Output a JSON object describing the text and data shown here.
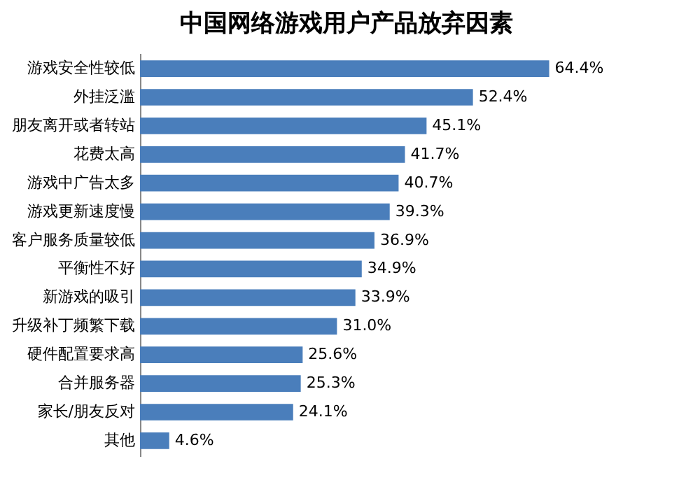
{
  "chart_data": {
    "type": "bar",
    "orientation": "horizontal",
    "title": "中国网络游戏用户产品放弃因素",
    "categories": [
      "游戏安全性较低",
      "外挂泛滥",
      "朋友离开或者转站",
      "花费太高",
      "游戏中广告太多",
      "游戏更新速度慢",
      "客户服务质量较低",
      "平衡性不好",
      "新游戏的吸引",
      "升级补丁频繁下载",
      "硬件配置要求高",
      "合并服务器",
      "家长/朋友反对",
      "其他"
    ],
    "values": [
      64.4,
      52.4,
      45.1,
      41.7,
      40.7,
      39.3,
      36.9,
      34.9,
      33.9,
      31.0,
      25.6,
      25.3,
      24.1,
      4.6
    ],
    "value_labels": [
      "64.4%",
      "52.4%",
      "45.1%",
      "41.7%",
      "40.7%",
      "39.3%",
      "36.9%",
      "34.9%",
      "33.9%",
      "31.0%",
      "25.6%",
      "25.3%",
      "24.1%",
      "4.6%"
    ],
    "color": "#4a7ebb"
  }
}
